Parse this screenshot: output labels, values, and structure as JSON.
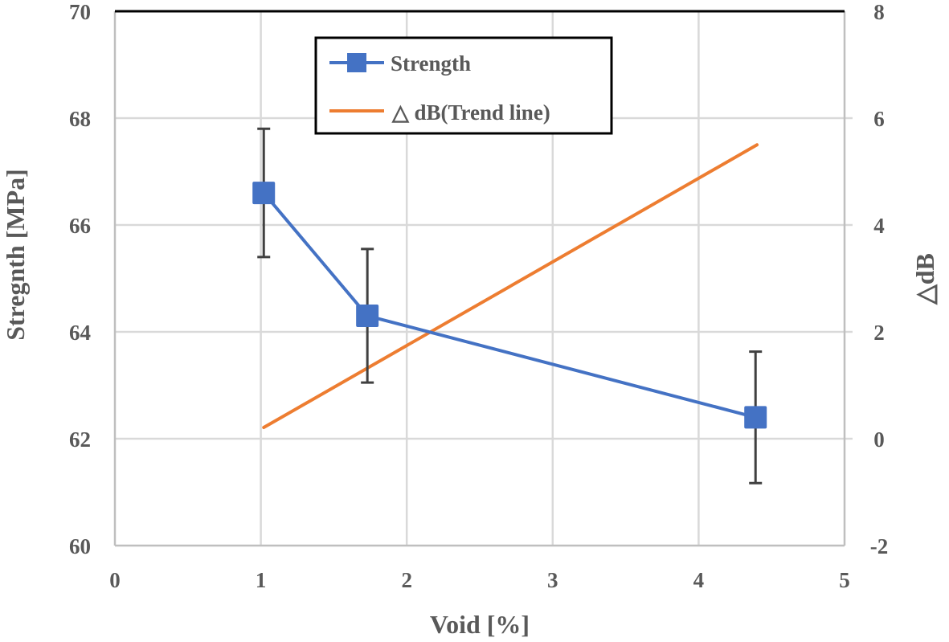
{
  "chart_data": {
    "type": "line",
    "title": "",
    "xlabel": "Void [%]",
    "ylabel": "Stregnth [MPa]",
    "y2label": "△dB",
    "xlim": [
      0,
      5
    ],
    "ylim": [
      60,
      70
    ],
    "y2lim": [
      -2,
      8
    ],
    "x_ticks": [
      "0",
      "1",
      "2",
      "3",
      "4",
      "5"
    ],
    "y_ticks": [
      "60",
      "62",
      "64",
      "66",
      "68",
      "70"
    ],
    "y2_ticks": [
      "-2",
      "0",
      "2",
      "4",
      "6",
      "8"
    ],
    "grid": true,
    "legend_position": "top-center",
    "series": [
      {
        "name": "Strength",
        "axis": "left",
        "marker": "square",
        "color": "#4472C4",
        "x": [
          1.02,
          1.73,
          4.39
        ],
        "y": [
          66.6,
          64.3,
          62.4
        ],
        "error": [
          1.2,
          1.25,
          1.23
        ]
      },
      {
        "name": "△ dB(Trend line)",
        "axis": "right",
        "marker": "none",
        "color": "#ED7D31",
        "x": [
          1.02,
          4.4
        ],
        "y": [
          0.21,
          5.5
        ]
      }
    ]
  }
}
